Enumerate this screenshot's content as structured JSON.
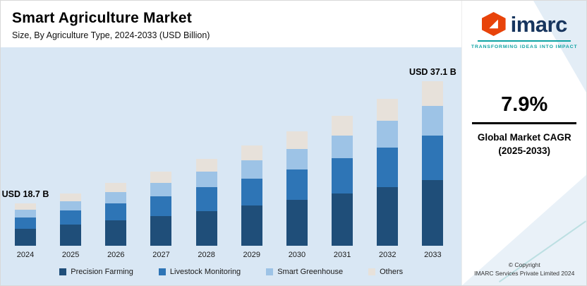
{
  "header": {
    "title": "Smart Agriculture Market",
    "subtitle": "Size, By Agriculture Type, 2024-2033 (USD Billion)"
  },
  "chart_data": {
    "type": "bar",
    "stacked": true,
    "title": "Smart Agriculture Market",
    "subtitle": "Size, By Agriculture Type, 2024-2033 (USD Billion)",
    "unit": "USD Billion",
    "categories": [
      "2024",
      "2025",
      "2026",
      "2027",
      "2028",
      "2029",
      "2030",
      "2031",
      "2032",
      "2033"
    ],
    "series": [
      {
        "name": "Precision Farming",
        "color": "#1f4e79",
        "values": [
          7.5,
          8.1,
          8.7,
          9.4,
          10.2,
          11.0,
          11.8,
          12.8,
          13.8,
          14.8
        ]
      },
      {
        "name": "Livestock Monitoring",
        "color": "#2e75b6",
        "values": [
          5.0,
          5.5,
          5.9,
          6.3,
          6.9,
          7.4,
          8.0,
          8.6,
          9.3,
          10.0
        ]
      },
      {
        "name": "Smart Greenhouse",
        "color": "#9dc3e6",
        "values": [
          3.4,
          3.6,
          3.9,
          4.2,
          4.6,
          4.9,
          5.3,
          5.7,
          6.2,
          6.7
        ]
      },
      {
        "name": "Others",
        "color": "#e7e1da",
        "values": [
          2.8,
          3.0,
          3.3,
          3.6,
          3.7,
          4.1,
          4.4,
          4.8,
          5.1,
          5.6
        ]
      }
    ],
    "totals": [
      18.7,
      20.2,
      21.8,
      23.5,
      25.4,
      27.4,
      29.5,
      31.9,
      34.4,
      37.1
    ],
    "annotations": [
      {
        "index": 0,
        "label": "USD 18.7 B"
      },
      {
        "index": 9,
        "label": "USD 37.1 B"
      }
    ],
    "ylim": [
      0,
      40
    ],
    "legend_position": "bottom",
    "grid": false
  },
  "sidebar": {
    "logo_text": "imarc",
    "tagline": "TRANSFORMING IDEAS INTO IMPACT",
    "cagr_value": "7.9%",
    "cagr_label_line1": "Global Market CAGR",
    "cagr_label_line2": "(2025-2033)",
    "copyright_line1": "© Copyright",
    "copyright_line2": "IMARC Services Private Limited 2024"
  }
}
